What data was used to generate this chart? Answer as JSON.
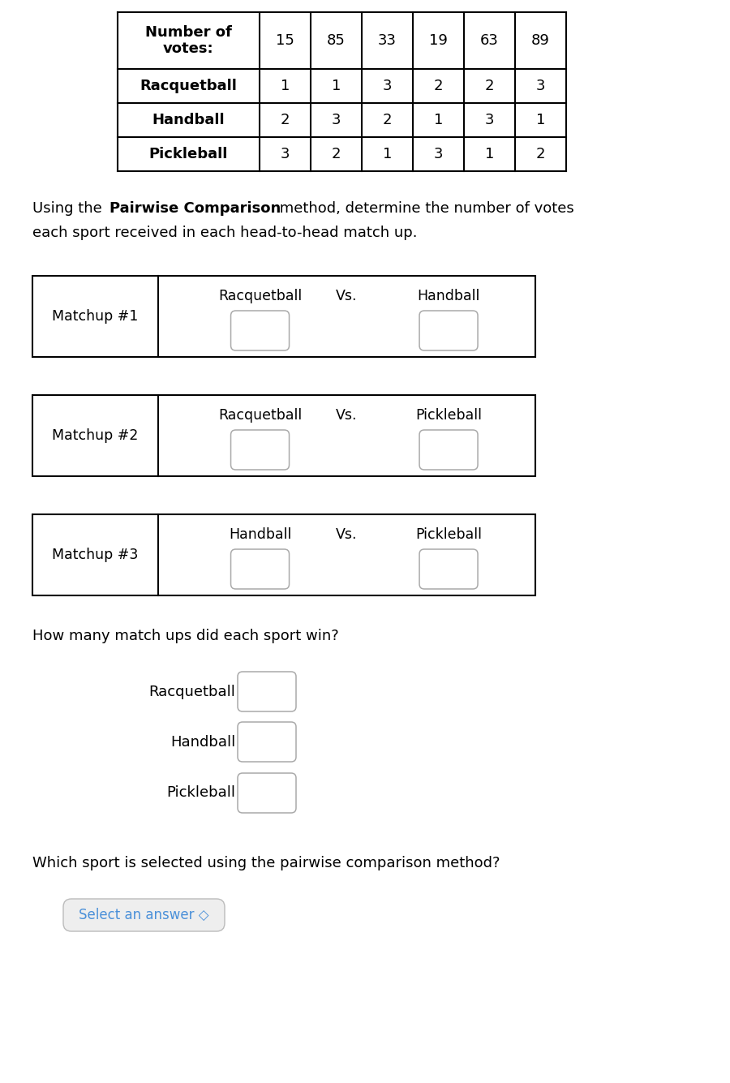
{
  "bg_color": "#ffffff",
  "table_header": [
    "Number of\nvotes:",
    "15",
    "85",
    "33",
    "19",
    "63",
    "89"
  ],
  "table_rows": [
    [
      "Racquetball",
      "1",
      "1",
      "3",
      "2",
      "2",
      "3"
    ],
    [
      "Handball",
      "2",
      "3",
      "2",
      "1",
      "3",
      "1"
    ],
    [
      "Pickleball",
      "3",
      "2",
      "1",
      "3",
      "1",
      "2"
    ]
  ],
  "matchups": [
    {
      "label": "Matchup #1",
      "sport1": "Racquetball",
      "sport2": "Handball"
    },
    {
      "label": "Matchup #2",
      "sport1": "Racquetball",
      "sport2": "Pickleball"
    },
    {
      "label": "Matchup #3",
      "sport1": "Handball",
      "sport2": "Pickleball"
    }
  ],
  "wins_question": "How many match ups did each sport win?",
  "wins_sports": [
    "Racquetball",
    "Handball",
    "Pickleball"
  ],
  "final_question": "Which sport is selected using the pairwise comparison method?",
  "select_text": "Select an answer ◇",
  "select_text_color": "#4a90d9",
  "text_color": "#000000",
  "border_color": "#000000",
  "box_color": "#aaaaaa",
  "table_font_size": 13,
  "body_font_size": 13,
  "label_font_size": 12.5
}
